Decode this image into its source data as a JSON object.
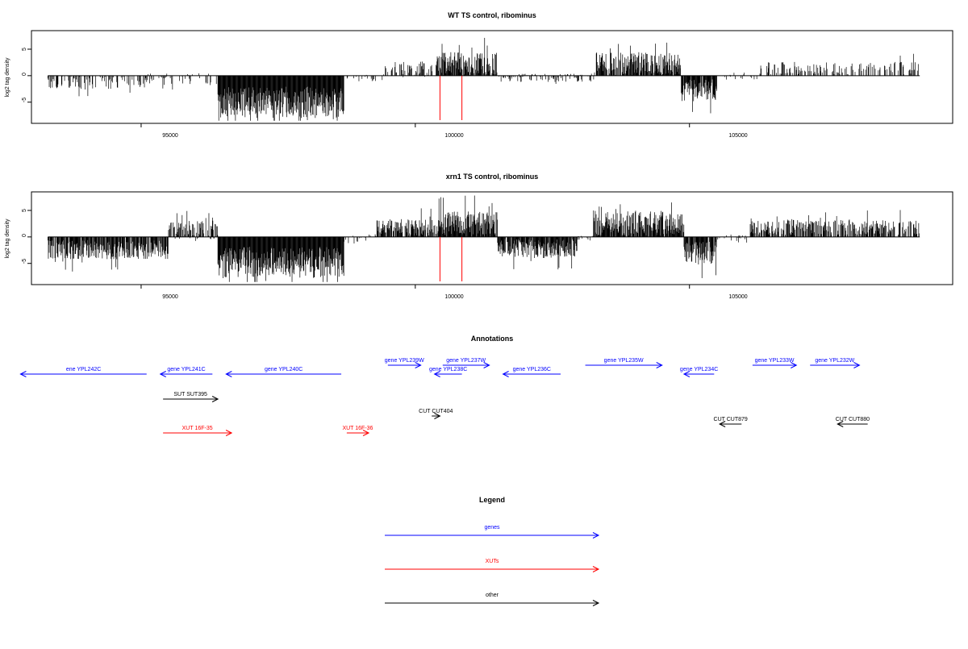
{
  "colors": {
    "gene": "#0000ff",
    "xut": "#ff0000",
    "other": "#000000",
    "marker": "#ff0000",
    "bars": "#000000"
  },
  "chart_data": [
    {
      "type": "bar",
      "title": "WT TS control, ribominus",
      "ylabel": "log2 tag density",
      "xlim": [
        93000,
        109800
      ],
      "ylim": [
        -9,
        8.5
      ],
      "xticks": [
        95000,
        100000,
        105000
      ],
      "xtick_labels": [
        "95000",
        "100000",
        "105000"
      ],
      "yticks": [
        -5,
        0,
        5
      ],
      "ytick_labels": [
        "-5",
        "0",
        "5"
      ],
      "markers": [
        100450,
        100850
      ],
      "profile_segments": [
        {
          "from": 93300,
          "to": 95100,
          "mean": -1.3,
          "amp": 1.2,
          "density": 0.35
        },
        {
          "from": 95100,
          "to": 96400,
          "mean": -0.6,
          "amp": 1.2,
          "density": 0.25
        },
        {
          "from": 96400,
          "to": 98700,
          "mean": -5.0,
          "amp": 3.0,
          "density": 1.0
        },
        {
          "from": 98700,
          "to": 99450,
          "mean": -0.4,
          "amp": 0.7,
          "density": 0.15
        },
        {
          "from": 99450,
          "to": 100400,
          "mean": 1.2,
          "amp": 1.5,
          "density": 0.45
        },
        {
          "from": 100400,
          "to": 101500,
          "mean": 2.3,
          "amp": 2.2,
          "density": 0.85
        },
        {
          "from": 101500,
          "to": 103300,
          "mean": -0.4,
          "amp": 0.8,
          "density": 0.3
        },
        {
          "from": 103300,
          "to": 104850,
          "mean": 2.2,
          "amp": 2.2,
          "density": 0.85
        },
        {
          "from": 104850,
          "to": 105500,
          "mean": -2.7,
          "amp": 2.0,
          "density": 0.9
        },
        {
          "from": 105500,
          "to": 106300,
          "mean": -0.2,
          "amp": 0.8,
          "density": 0.2
        },
        {
          "from": 106300,
          "to": 109200,
          "mean": 1.4,
          "amp": 1.2,
          "density": 0.35
        }
      ]
    },
    {
      "type": "bar",
      "title": "xrn1 TS control, ribominus",
      "ylabel": "log2 tag density",
      "xlim": [
        93000,
        109800
      ],
      "ylim": [
        -9,
        8.5
      ],
      "xticks": [
        95000,
        100000,
        105000
      ],
      "xtick_labels": [
        "95000",
        "100000",
        "105000"
      ],
      "yticks": [
        -5,
        0,
        5
      ],
      "ytick_labels": [
        "-5",
        "0",
        "5"
      ],
      "markers": [
        100450,
        100850
      ],
      "profile_segments": [
        {
          "from": 93300,
          "to": 95500,
          "mean": -2.4,
          "amp": 1.8,
          "density": 0.85
        },
        {
          "from": 95500,
          "to": 96400,
          "mean": 1.3,
          "amp": 1.8,
          "density": 0.6
        },
        {
          "from": 96400,
          "to": 98700,
          "mean": -4.8,
          "amp": 3.0,
          "density": 1.0
        },
        {
          "from": 98700,
          "to": 99300,
          "mean": -0.3,
          "amp": 1.0,
          "density": 0.25
        },
        {
          "from": 99300,
          "to": 100400,
          "mean": 1.8,
          "amp": 1.6,
          "density": 0.75
        },
        {
          "from": 100400,
          "to": 101500,
          "mean": 2.6,
          "amp": 2.3,
          "density": 0.9
        },
        {
          "from": 101500,
          "to": 102950,
          "mean": -2.2,
          "amp": 1.8,
          "density": 0.9
        },
        {
          "from": 102950,
          "to": 103250,
          "mean": -0.4,
          "amp": 0.7,
          "density": 0.2
        },
        {
          "from": 103250,
          "to": 104900,
          "mean": 2.6,
          "amp": 2.4,
          "density": 0.9
        },
        {
          "from": 104900,
          "to": 105500,
          "mean": -2.9,
          "amp": 2.1,
          "density": 0.9
        },
        {
          "from": 105500,
          "to": 106100,
          "mean": -0.3,
          "amp": 0.8,
          "density": 0.25
        },
        {
          "from": 106100,
          "to": 109200,
          "mean": 1.8,
          "amp": 1.5,
          "density": 0.65
        }
      ]
    }
  ],
  "annotations": {
    "title": "Annotations",
    "xlim": [
      93000,
      109800
    ],
    "features": [
      {
        "label": "ene YPL242C",
        "from": 92800,
        "to": 95100,
        "dir": "-",
        "type": "gene",
        "row": 1
      },
      {
        "label": "gene YPL241C",
        "from": 95350,
        "to": 96300,
        "dir": "-",
        "type": "gene",
        "row": 1
      },
      {
        "label": "gene YPL240C",
        "from": 96550,
        "to": 98650,
        "dir": "-",
        "type": "gene",
        "row": 1
      },
      {
        "label": "gene YPL239W",
        "from": 99500,
        "to": 100100,
        "dir": "+",
        "type": "gene",
        "row": 0
      },
      {
        "label": "gene YPL237W",
        "from": 100500,
        "to": 101350,
        "dir": "+",
        "type": "gene",
        "row": 0
      },
      {
        "label": "gene YPL238C",
        "from": 100350,
        "to": 100850,
        "dir": "-",
        "type": "gene",
        "row": 1
      },
      {
        "label": "gene YPL236C",
        "from": 101600,
        "to": 102650,
        "dir": "-",
        "type": "gene",
        "row": 1
      },
      {
        "label": "gene YPL235W",
        "from": 103100,
        "to": 104500,
        "dir": "+",
        "type": "gene",
        "row": 0
      },
      {
        "label": "gene YPL234C",
        "from": 104900,
        "to": 105450,
        "dir": "-",
        "type": "gene",
        "row": 1
      },
      {
        "label": "gene YPL233W",
        "from": 106150,
        "to": 106950,
        "dir": "+",
        "type": "gene",
        "row": 0
      },
      {
        "label": "gene YPL232W",
        "from": 107200,
        "to": 108100,
        "dir": "+",
        "type": "gene",
        "row": 0
      },
      {
        "label": "SUT SUT395",
        "from": 95400,
        "to": 96400,
        "dir": "+",
        "type": "other",
        "row": 2
      },
      {
        "label": "CUT CUT404",
        "from": 100300,
        "to": 100450,
        "dir": "+",
        "type": "other",
        "row": 3
      },
      {
        "label": "CUT CUT879",
        "from": 105550,
        "to": 105950,
        "dir": "-",
        "type": "other",
        "row": 4
      },
      {
        "label": "CUT CUT880",
        "from": 107700,
        "to": 108250,
        "dir": "-",
        "type": "other",
        "row": 4
      },
      {
        "label": "XUT 16F-35",
        "from": 95400,
        "to": 96650,
        "dir": "+",
        "type": "xut",
        "row": 5
      },
      {
        "label": "XUT 16F-36",
        "from": 98750,
        "to": 99150,
        "dir": "+",
        "type": "xut",
        "row": 5
      }
    ]
  },
  "legend": {
    "title": "Legend",
    "items": [
      {
        "label": "genes",
        "type": "gene"
      },
      {
        "label": "XUTs",
        "type": "xut"
      },
      {
        "label": "other",
        "type": "other"
      }
    ]
  }
}
